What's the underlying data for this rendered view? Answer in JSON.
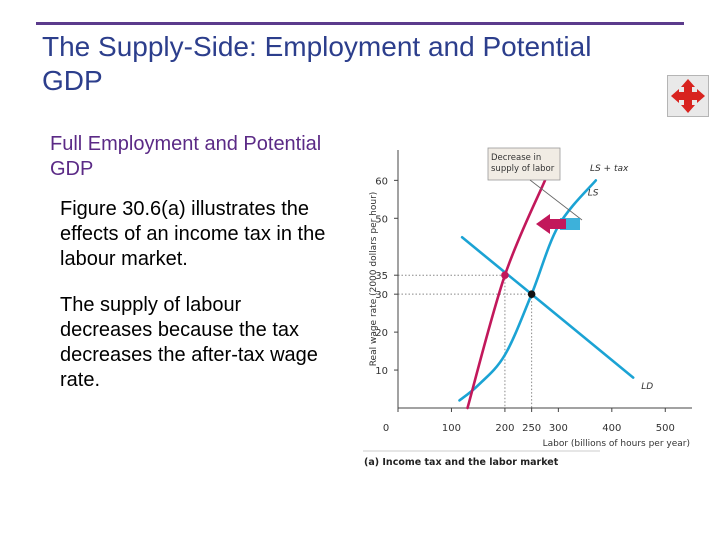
{
  "slide": {
    "title": "The Supply-Side: Employment and Potential GDP",
    "section_heading": "Full Employment and Potential GDP",
    "paragraphs": [
      "Figure 30.6(a) illustrates the effects of an income tax in the labour market.",
      "The supply of labour decreases because the tax decreases the after-tax wage rate."
    ]
  },
  "nav_icon": {
    "name": "four-way-arrow-icon",
    "color": "#d8231f"
  },
  "chart_data": {
    "type": "line",
    "caption": "(a) Income tax and the labor market",
    "xlabel": "Labor (billions of hours per year)",
    "ylabel": "Real wage rate (2000 dollars per hour)",
    "xlim": [
      0,
      550
    ],
    "ylim": [
      0,
      68
    ],
    "x_ticks": [
      {
        "v": 0,
        "label": "0"
      },
      {
        "v": 100,
        "label": "100"
      },
      {
        "v": 200,
        "label": "200"
      },
      {
        "v": 250,
        "label": "250"
      },
      {
        "v": 300,
        "label": "300"
      },
      {
        "v": 400,
        "label": "400"
      },
      {
        "v": 500,
        "label": "500"
      }
    ],
    "y_ticks": [
      {
        "v": 10,
        "label": "10"
      },
      {
        "v": 20,
        "label": "20"
      },
      {
        "v": 30,
        "label": "30"
      },
      {
        "v": 35,
        "label": "35"
      },
      {
        "v": 50,
        "label": "50"
      },
      {
        "v": 60,
        "label": "60"
      }
    ],
    "highlight_color": "#c2185b",
    "series": [
      {
        "name": "LD",
        "color": "#1ba3d4",
        "points": [
          [
            120,
            45
          ],
          [
            250,
            30
          ],
          [
            440,
            8
          ]
        ]
      },
      {
        "name": "LS",
        "color": "#1ba3d4",
        "points": [
          [
            115,
            2
          ],
          [
            150,
            6
          ],
          [
            200,
            14
          ],
          [
            250,
            30
          ],
          [
            300,
            48
          ],
          [
            370,
            60
          ]
        ]
      },
      {
        "name": "LS + tax",
        "color": "#c2185b",
        "points": [
          [
            130,
            0
          ],
          [
            200,
            35
          ],
          [
            275,
            60
          ]
        ]
      }
    ],
    "equilibria": [
      {
        "x": 250,
        "y": 30,
        "color": "#111111"
      },
      {
        "x": 200,
        "y": 35,
        "color": "#c2185b"
      }
    ],
    "highlight_values": [
      35,
      200
    ],
    "annotation": {
      "text": [
        "Decrease in",
        "supply of labor"
      ],
      "arrow_colors": [
        "#c2185b",
        "#1ba3d4"
      ]
    }
  }
}
